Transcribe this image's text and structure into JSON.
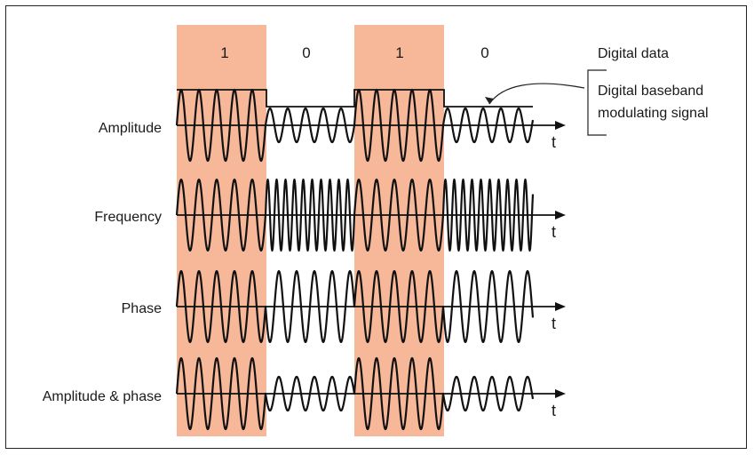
{
  "highlight_color": "#f6b898",
  "bits": [
    "1",
    "0",
    "1",
    "0"
  ],
  "row_labels": [
    "Amplitude",
    "Frequency",
    "Phase",
    "Amplitude & phase"
  ],
  "time_label": "t",
  "annotations": {
    "digital_data": "Digital data",
    "baseband_line1": "Digital baseband",
    "baseband_line2": "modulating signal"
  }
}
